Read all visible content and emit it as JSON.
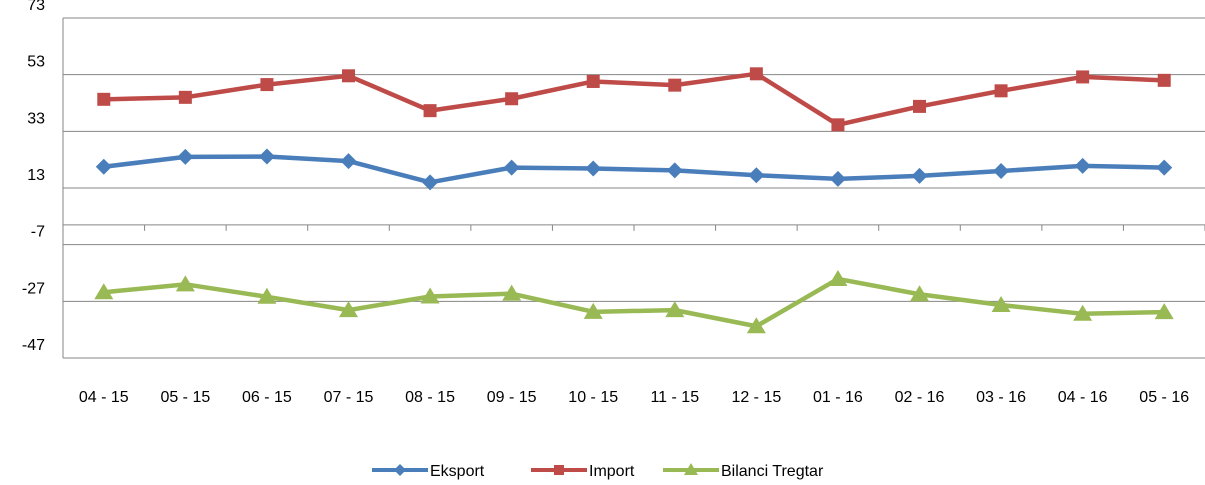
{
  "chart_data": {
    "type": "line",
    "categories": [
      "04 - 15",
      "05 - 15",
      "06 - 15",
      "07 - 15",
      "08 - 15",
      "09 - 15",
      "10 - 15",
      "11 - 15",
      "12 - 15",
      "01 - 16",
      "02 - 16",
      "03 - 16",
      "04 - 16",
      "05 - 16"
    ],
    "y_ticks": [
      73,
      53,
      33,
      13,
      -7,
      -27,
      -47
    ],
    "ylim": [
      -47,
      73
    ],
    "grid": true,
    "legend_position": "bottom",
    "series": [
      {
        "name": "Eksport",
        "color": "#4a7ebb",
        "marker": "diamond",
        "values": [
          20.5,
          24.0,
          24.1,
          22.5,
          15.0,
          20.2,
          19.9,
          19.2,
          17.5,
          16.2,
          17.3,
          19.0,
          20.8,
          20.2
        ]
      },
      {
        "name": "Import",
        "color": "#be4b48",
        "marker": "square",
        "values": [
          44.3,
          45.0,
          49.5,
          52.6,
          40.3,
          44.5,
          50.6,
          49.3,
          53.3,
          35.3,
          41.8,
          47.3,
          52.2,
          51.0
        ]
      },
      {
        "name": "Bilanci Tregtar",
        "color": "#98b954",
        "marker": "triangle",
        "values": [
          -23.8,
          -21.0,
          -25.4,
          -30.1,
          -25.3,
          -24.3,
          -30.7,
          -30.1,
          -35.8,
          -19.1,
          -24.5,
          -28.3,
          -31.4,
          -30.8
        ]
      }
    ]
  }
}
